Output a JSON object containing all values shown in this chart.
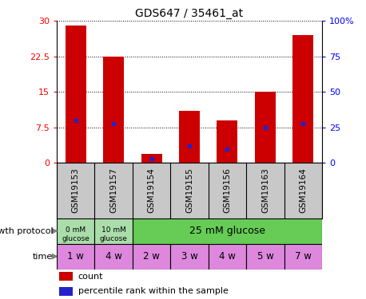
{
  "title": "GDS647 / 35461_at",
  "samples": [
    "GSM19153",
    "GSM19157",
    "GSM19154",
    "GSM19155",
    "GSM19156",
    "GSM19163",
    "GSM19164"
  ],
  "counts": [
    29,
    22.5,
    2,
    11,
    9,
    15,
    27
  ],
  "percentiles": [
    30,
    28,
    3,
    12,
    10,
    25,
    28
  ],
  "ylim_left": [
    0,
    30
  ],
  "ylim_right": [
    0,
    100
  ],
  "yticks_left": [
    0,
    7.5,
    15,
    22.5,
    30
  ],
  "yticks_right": [
    0,
    25,
    50,
    75,
    100
  ],
  "bar_color": "#cc0000",
  "pct_color": "#2222cc",
  "bar_width": 0.55,
  "time_labels": [
    "1 w",
    "4 w",
    "2 w",
    "3 w",
    "4 w",
    "5 w",
    "7 w"
  ],
  "time_color": "#dd88dd",
  "sample_bg_color": "#c8c8c8",
  "gp_light_green": "#aaddaa",
  "gp_green": "#66cc55",
  "growth_label": "growth protocol",
  "time_label": "time",
  "legend_count": "count",
  "legend_pct": "percentile rank within the sample"
}
